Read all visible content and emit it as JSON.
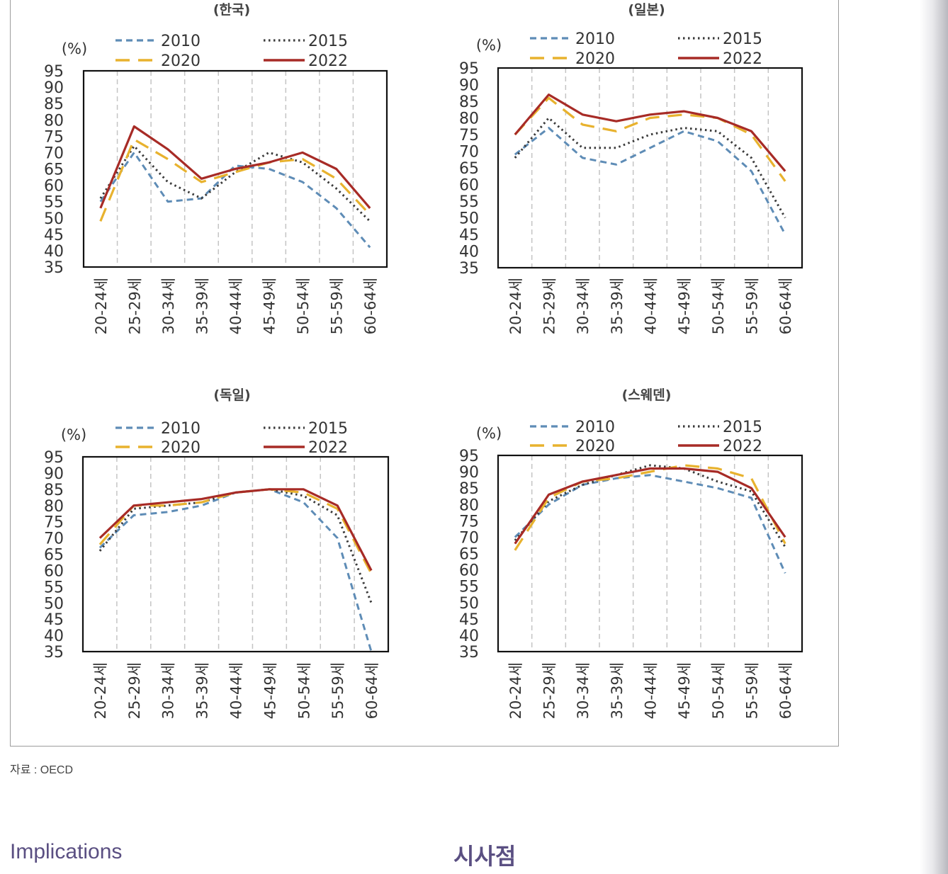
{
  "chart_data": [
    {
      "type": "line",
      "title": "(한국)",
      "ylabel": "(%)",
      "ylim": [
        35,
        95
      ],
      "yticks": [
        "95",
        "90",
        "85",
        "80",
        "75",
        "70",
        "65",
        "60",
        "55",
        "50",
        "45",
        "40",
        "35"
      ],
      "categories": [
        "20-24세",
        "25-29세",
        "30-34세",
        "35-39세",
        "40-44세",
        "45-49세",
        "50-54세",
        "55-59세",
        "60-64세"
      ],
      "legend_placement": "top",
      "grid": "vertical-dashed",
      "series": [
        {
          "name": "2010",
          "values": [
            55,
            70,
            55,
            56,
            66,
            65,
            61,
            53,
            41
          ]
        },
        {
          "name": "2015",
          "values": [
            56,
            72,
            61,
            56,
            64,
            70,
            67,
            59,
            49
          ]
        },
        {
          "name": "2020",
          "values": [
            49,
            74,
            68,
            61,
            64,
            67,
            68,
            62,
            51
          ]
        },
        {
          "name": "2022",
          "values": [
            53,
            78,
            71,
            62,
            65,
            67,
            70,
            65,
            53
          ]
        }
      ]
    },
    {
      "type": "line",
      "title": "(일본)",
      "ylabel": "(%)",
      "ylim": [
        35,
        95
      ],
      "yticks": [
        "95",
        "90",
        "85",
        "80",
        "75",
        "70",
        "65",
        "60",
        "55",
        "50",
        "45",
        "40",
        "35"
      ],
      "categories": [
        "20-24세",
        "25-29세",
        "30-34세",
        "35-39세",
        "40-44세",
        "45-49세",
        "50-54세",
        "55-59세",
        "60-64세"
      ],
      "legend_placement": "top",
      "grid": "vertical-dashed",
      "series": [
        {
          "name": "2010",
          "values": [
            69,
            77,
            68,
            66,
            71,
            76,
            73,
            64,
            45
          ]
        },
        {
          "name": "2015",
          "values": [
            68,
            80,
            71,
            71,
            75,
            77,
            76,
            68,
            50
          ]
        },
        {
          "name": "2020",
          "values": [
            75,
            86,
            78,
            76,
            80,
            81,
            80,
            75,
            61
          ]
        },
        {
          "name": "2022",
          "values": [
            75,
            87,
            81,
            79,
            81,
            82,
            80,
            76,
            64
          ]
        }
      ]
    },
    {
      "type": "line",
      "title": "(독일)",
      "ylabel": "(%)",
      "ylim": [
        35,
        95
      ],
      "yticks": [
        "95",
        "90",
        "85",
        "80",
        "75",
        "70",
        "65",
        "60",
        "55",
        "50",
        "45",
        "40",
        "35"
      ],
      "categories": [
        "20-24세",
        "25-29세",
        "30-34세",
        "35-39세",
        "40-44세",
        "45-49세",
        "50-54세",
        "55-59세",
        "60-64세"
      ],
      "legend_placement": "top",
      "grid": "vertical-dashed",
      "series": [
        {
          "name": "2010",
          "values": [
            67,
            77,
            78,
            80,
            84,
            85,
            81,
            70,
            35
          ]
        },
        {
          "name": "2015",
          "values": [
            66,
            79,
            80,
            81,
            84,
            85,
            83,
            77,
            50
          ]
        },
        {
          "name": "2020",
          "values": [
            68,
            80,
            80,
            81,
            84,
            85,
            84,
            79,
            59
          ]
        },
        {
          "name": "2022",
          "values": [
            70,
            80,
            81,
            82,
            84,
            85,
            85,
            80,
            60
          ]
        }
      ]
    },
    {
      "type": "line",
      "title": "(스웨덴)",
      "ylabel": "(%)",
      "ylim": [
        35,
        95
      ],
      "yticks": [
        "95",
        "90",
        "85",
        "80",
        "75",
        "70",
        "65",
        "60",
        "55",
        "50",
        "45",
        "40",
        "35"
      ],
      "categories": [
        "20-24세",
        "25-29세",
        "30-34세",
        "35-39세",
        "40-44세",
        "45-49세",
        "50-54세",
        "55-59세",
        "60-64세"
      ],
      "legend_placement": "top",
      "grid": "vertical-dashed",
      "series": [
        {
          "name": "2010",
          "values": [
            70,
            80,
            86,
            88,
            89,
            87,
            85,
            82,
            59
          ]
        },
        {
          "name": "2015",
          "values": [
            69,
            81,
            86,
            89,
            92,
            91,
            87,
            84,
            67
          ]
        },
        {
          "name": "2020",
          "values": [
            66,
            82,
            87,
            88,
            90,
            92,
            91,
            88,
            68
          ]
        },
        {
          "name": "2022",
          "values": [
            68,
            83,
            87,
            89,
            91,
            91,
            90,
            85,
            70
          ]
        }
      ]
    }
  ],
  "series_styles": [
    {
      "color": "#5e8cb6",
      "dash": "9 6"
    },
    {
      "color": "#3b3b3b",
      "dash": "2.5 4.5"
    },
    {
      "color": "#e8b22e",
      "dash": "20 12"
    },
    {
      "color": "#a72b26",
      "dash": ""
    }
  ],
  "source_note": "자료 : OECD",
  "headings": {
    "implications": "Implications",
    "korean": "시사점"
  }
}
